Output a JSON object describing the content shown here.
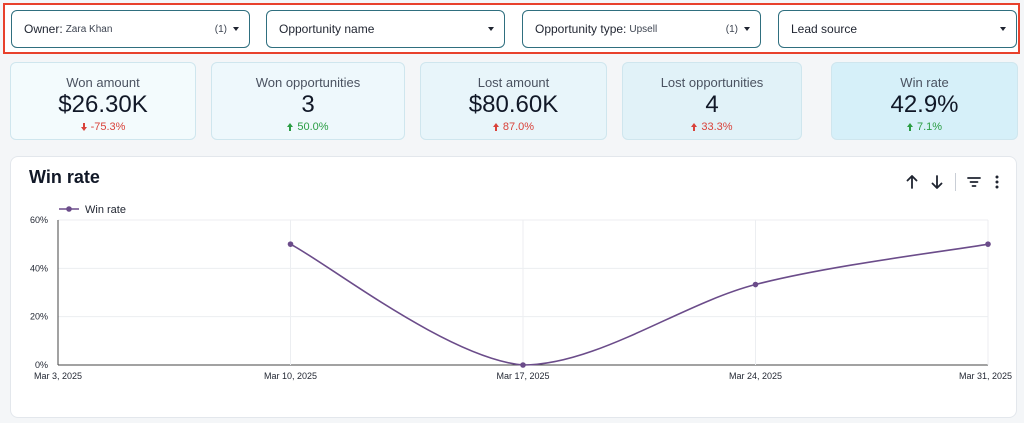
{
  "filters": [
    {
      "label": "Owner:",
      "value": "Zara Khan",
      "count": "(1)"
    },
    {
      "label": "Opportunity name",
      "value": "",
      "count": ""
    },
    {
      "label": "Opportunity type:",
      "value": "Upsell",
      "count": "(1)"
    },
    {
      "label": "Lead source",
      "value": "",
      "count": ""
    }
  ],
  "kpis": [
    {
      "label": "Won amount",
      "value": "$26.30K",
      "delta": "-75.3%",
      "direction": "down",
      "bg": "#f3fbfd"
    },
    {
      "label": "Won opportunities",
      "value": "3",
      "delta": "50.0%",
      "direction": "up-good",
      "bg": "#eef8fc"
    },
    {
      "label": "Lost amount",
      "value": "$80.60K",
      "delta": "87.0%",
      "direction": "up-bad",
      "bg": "#e8f5fa"
    },
    {
      "label": "Lost opportunities",
      "value": "4",
      "delta": "33.3%",
      "direction": "up-bad",
      "bg": "#e1f2f8"
    },
    {
      "label": "Win rate",
      "value": "42.9%",
      "delta": "7.1%",
      "direction": "up-good",
      "bg": "#d6f0f9"
    }
  ],
  "chart_card": {
    "title": "Win rate",
    "tools": [
      "sort-ascending-icon",
      "sort-descending-icon",
      "filter-icon",
      "more-vert-icon"
    ]
  },
  "chart_data": {
    "type": "line",
    "title": "Win rate",
    "xlabel": "",
    "ylabel": "",
    "x": [
      "Mar 3, 2025",
      "Mar 10, 2025",
      "Mar 17, 2025",
      "Mar 24, 2025",
      "Mar 31, 2025"
    ],
    "series": [
      {
        "name": "Win rate",
        "points": [
          [
            "Mar 10, 2025",
            50
          ],
          [
            "Mar 17, 2025",
            0
          ],
          [
            "Mar 24, 2025",
            33.3
          ],
          [
            "Mar 31, 2025",
            50
          ]
        ]
      }
    ],
    "y_ticks": [
      "0%",
      "20%",
      "40%",
      "60%"
    ],
    "ylim": [
      0,
      60
    ],
    "legend": "top-left",
    "grid": true,
    "color": "#6b4c8a"
  },
  "colors": {
    "highlight_border": "#e8412c",
    "filter_border": "#2f6f7f",
    "negative": "#d9423a",
    "positive": "#2a9d43"
  }
}
